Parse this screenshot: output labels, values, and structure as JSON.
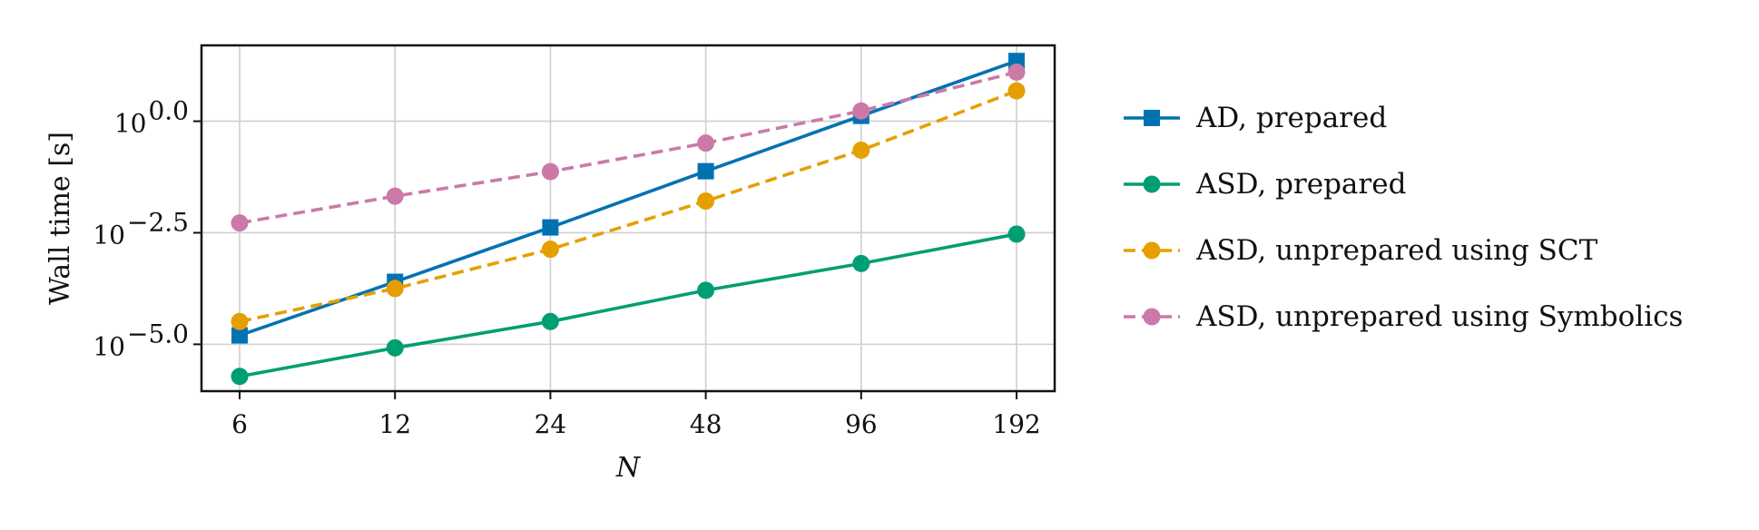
{
  "chart_data": {
    "type": "line",
    "title": "",
    "xlabel": "N",
    "ylabel": "Wall time [s]",
    "x": [
      6,
      12,
      24,
      48,
      96,
      192
    ],
    "x_tick_labels": [
      "6",
      "12",
      "24",
      "48",
      "96",
      "192"
    ],
    "x_scale": "log2",
    "y_scale": "log10",
    "ylim_log10": [
      -6.05,
      1.7
    ],
    "y_ticks": [
      {
        "base": "10",
        "exp": "0.0",
        "log10": 0.0
      },
      {
        "base": "10",
        "exp": "−2.5",
        "log10": -2.5
      },
      {
        "base": "10",
        "exp": "−5.0",
        "log10": -5.0
      }
    ],
    "grid": true,
    "legend_position": "right",
    "series": [
      {
        "name": "AD, prepared",
        "color": "#0072B2",
        "marker": "square",
        "dash": "solid",
        "log10_values": [
          -4.8,
          -3.6,
          -2.38,
          -1.12,
          0.12,
          1.35
        ]
      },
      {
        "name": "ASD, prepared",
        "color": "#009E73",
        "marker": "circle",
        "dash": "solid",
        "log10_values": [
          -5.72,
          -5.08,
          -4.49,
          -3.79,
          -3.19,
          -2.53
        ]
      },
      {
        "name": "ASD, unprepared using SCT",
        "color": "#E69F00",
        "marker": "circle",
        "dash": "dashed",
        "log10_values": [
          -4.49,
          -3.75,
          -2.87,
          -1.79,
          -0.65,
          0.68
        ]
      },
      {
        "name": "ASD, unprepared using Symbolics",
        "color": "#CC79A7",
        "marker": "circle",
        "dash": "dashed",
        "log10_values": [
          -2.28,
          -1.68,
          -1.13,
          -0.49,
          0.23,
          1.1
        ]
      }
    ]
  }
}
